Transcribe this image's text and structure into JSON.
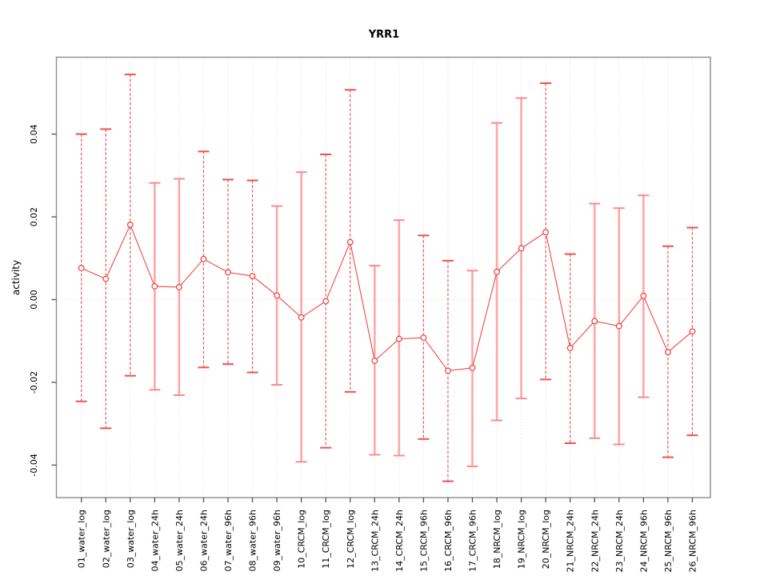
{
  "chart_data": {
    "type": "line",
    "title": "YRR1",
    "ylabel": "activity",
    "xlabel": "",
    "ylim": [
      -0.048,
      0.058
    ],
    "yticks": [
      -0.04,
      -0.02,
      0.0,
      0.02,
      0.04
    ],
    "ytick_labels": [
      "-0.04",
      "-0.02",
      "0.00",
      "0.02",
      "0.04"
    ],
    "grid": "dotted vertical gridline at each category; dotted horizontal line at y=0",
    "legend": "none",
    "categories": [
      "01_water_log",
      "02_water_log",
      "03_water_log",
      "04_water_24h",
      "05_water_24h",
      "06_water_24h",
      "07_water_96h",
      "08_water_96h",
      "09_water_96h",
      "10_CRCM_log",
      "11_CRCM_log",
      "12_CRCM_log",
      "13_CRCM_24h",
      "14_CRCM_24h",
      "15_CRCM_96h",
      "16_CRCM_96h",
      "17_CRCM_96h",
      "18_NRCM_log",
      "19_NRCM_log",
      "20_NRCM_log",
      "21_NRCM_24h",
      "22_NRCM_24h",
      "23_NRCM_24h",
      "24_NRCM_96h",
      "25_NRCM_96h",
      "26_NRCM_96h"
    ],
    "series": [
      {
        "name": "activity",
        "values": [
          0.0076,
          0.005,
          0.0181,
          0.0032,
          0.003,
          0.0098,
          0.0066,
          0.0057,
          0.001,
          -0.0043,
          -0.0004,
          0.0139,
          -0.0148,
          -0.0095,
          -0.0092,
          -0.0172,
          -0.0165,
          0.0067,
          0.0124,
          0.0163,
          -0.0117,
          -0.0052,
          -0.0064,
          0.0009,
          -0.0127,
          -0.0077
        ]
      }
    ],
    "error_upper": [
      0.04,
      0.0412,
      0.0544,
      0.0282,
      0.0292,
      0.0358,
      0.029,
      0.0288,
      0.0226,
      0.0308,
      0.0351,
      0.0507,
      0.0082,
      0.0192,
      0.0155,
      0.0094,
      0.007,
      0.0427,
      0.0487,
      0.0523,
      0.011,
      0.0232,
      0.0221,
      0.0252,
      0.0129,
      0.0174
    ],
    "error_lower": [
      -0.0246,
      -0.0311,
      -0.0184,
      -0.0218,
      -0.0231,
      -0.0164,
      -0.0156,
      -0.0176,
      -0.0206,
      -0.0392,
      -0.0358,
      -0.0223,
      -0.0375,
      -0.0377,
      -0.0337,
      -0.0439,
      -0.0403,
      -0.0292,
      -0.0239,
      -0.0193,
      -0.0347,
      -0.0335,
      -0.035,
      -0.0236,
      -0.0381,
      -0.0328
    ],
    "error_bar_styles": [
      "dashed",
      "dashed",
      "dashed",
      "solid",
      "solid",
      "dashed",
      "dashed",
      "dashed",
      "solid",
      "solid",
      "dashed",
      "dashed",
      "solid",
      "solid",
      "dashed",
      "dashed",
      "solid",
      "solid",
      "solid",
      "dashed",
      "dashed",
      "solid",
      "solid",
      "solid",
      "dashed",
      "dashed"
    ],
    "colors": {
      "point": "#f24747",
      "line": "#f24747",
      "dashed_bar": "#f25555",
      "dashed_cap": "#f24f4f",
      "solid_bar": "#ffa6a6",
      "solid_cap": "#fb8a8a",
      "grid": "#d9d9d9",
      "zero_line": "#dbd3d3",
      "box": "#8c8c8c",
      "axis": "#4f4f4f",
      "text": "#000000"
    }
  }
}
